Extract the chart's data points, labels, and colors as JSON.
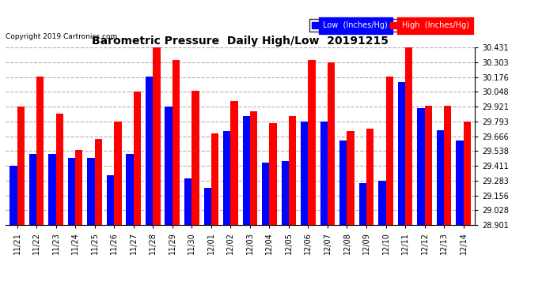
{
  "title": "Barometric Pressure  Daily High/Low  20191215",
  "copyright": "Copyright 2019 Cartronics.com",
  "legend_low": "Low  (Inches/Hg)",
  "legend_high": "High  (Inches/Hg)",
  "dates": [
    "11/21",
    "11/22",
    "11/23",
    "11/24",
    "11/25",
    "11/26",
    "11/27",
    "11/28",
    "11/29",
    "11/30",
    "12/01",
    "12/02",
    "12/03",
    "12/04",
    "12/05",
    "12/06",
    "12/07",
    "12/08",
    "12/09",
    "12/10",
    "12/11",
    "12/12",
    "12/13",
    "12/14"
  ],
  "low": [
    29.41,
    29.51,
    29.51,
    29.48,
    29.48,
    29.33,
    29.51,
    30.18,
    29.92,
    29.3,
    29.22,
    29.71,
    29.84,
    29.44,
    29.45,
    29.79,
    29.79,
    29.63,
    29.26,
    29.28,
    30.13,
    29.91,
    29.72,
    29.63
  ],
  "high": [
    29.92,
    30.18,
    29.86,
    29.55,
    29.64,
    29.79,
    30.05,
    30.43,
    30.32,
    30.06,
    29.69,
    29.97,
    29.88,
    29.78,
    29.84,
    30.32,
    30.3,
    29.71,
    29.73,
    30.18,
    30.43,
    29.93,
    29.93,
    29.79
  ],
  "ymin": 28.901,
  "ymax": 30.431,
  "yticks": [
    28.901,
    29.028,
    29.156,
    29.283,
    29.411,
    29.538,
    29.666,
    29.793,
    29.921,
    30.048,
    30.176,
    30.303,
    30.431
  ],
  "low_color": "#0000ff",
  "high_color": "#ff0000",
  "bg_color": "#ffffff",
  "grid_color": "#b0b0b0",
  "bar_width": 0.38
}
